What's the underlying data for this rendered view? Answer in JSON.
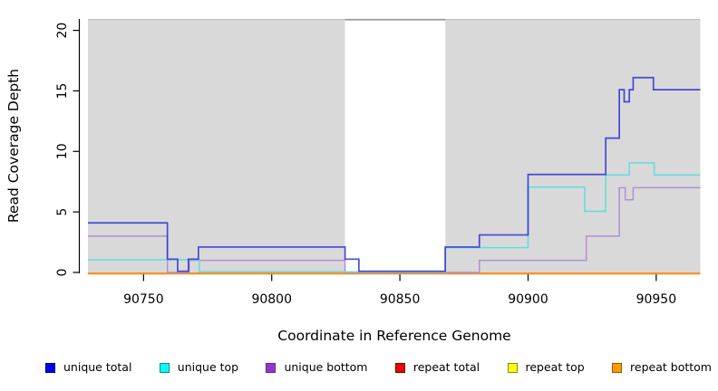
{
  "figure": {
    "x_axis": {
      "title": "Coordinate in Reference Genome",
      "ticks": [
        90750,
        90800,
        90850,
        90900,
        90950
      ],
      "range": [
        90728.3,
        90967.2
      ]
    },
    "y_axis": {
      "title": "Read Coverage Depth",
      "ticks": [
        0,
        5,
        10,
        15,
        20
      ],
      "range": [
        0,
        20.94
      ]
    }
  },
  "chart_data": {
    "type": "line",
    "subtype": "step-coverage",
    "title": "",
    "xlabel": "Coordinate in Reference Genome",
    "ylabel": "Read Coverage Depth",
    "xlim": [
      90728.3,
      90967.2
    ],
    "ylim": [
      0,
      20.94
    ],
    "grid": false,
    "legend_position": "bottom",
    "panel_background": "#d9d9d9",
    "no_data_band": {
      "x_start": 90828.6,
      "x_end": 90867.7,
      "fill": "#ffffff",
      "top_border": "#999999"
    },
    "series": [
      {
        "name": "repeat total",
        "color": "#e03030",
        "legend_fill": "#f00000",
        "legend_border": "#7d0000",
        "steps": [
          [
            90728.3,
            0
          ]
        ]
      },
      {
        "name": "repeat top",
        "color": "#ffe000",
        "legend_fill": "#ffff00",
        "legend_border": "#8b8b00",
        "steps": [
          [
            90728.3,
            0
          ]
        ]
      },
      {
        "name": "repeat bottom",
        "color": "#ff8c00",
        "legend_fill": "#ff9900",
        "legend_border": "#8b5a00",
        "steps": [
          [
            90728.3,
            0
          ]
        ]
      },
      {
        "name": "unique bottom",
        "color": "#b18fd9",
        "legend_fill": "#9933cc",
        "legend_border": "#5e2d91",
        "steps": [
          [
            90728.3,
            3
          ],
          [
            90759.3,
            0
          ],
          [
            90767.8,
            1
          ],
          [
            90828.6,
            0
          ],
          [
            90881,
            1
          ],
          [
            90922.7,
            3
          ],
          [
            90935.6,
            7
          ],
          [
            90937.9,
            6
          ],
          [
            90941,
            7
          ]
        ]
      },
      {
        "name": "unique top",
        "color": "#5edede",
        "legend_fill": "#00ffff",
        "legend_border": "#0f8b8b",
        "steps": [
          [
            90728.3,
            1
          ],
          [
            90771.8,
            0
          ],
          [
            90867.7,
            2
          ],
          [
            90900,
            7
          ],
          [
            90922.1,
            5
          ],
          [
            90930.3,
            8
          ],
          [
            90939.5,
            9
          ],
          [
            90949.2,
            8
          ]
        ]
      },
      {
        "name": "unique total",
        "color": "#2d2dd5",
        "legend_fill": "#0000f0",
        "legend_border": "#000080",
        "steps": [
          [
            90728.3,
            4
          ],
          [
            90759.3,
            1
          ],
          [
            90763.3,
            0
          ],
          [
            90767.5,
            1
          ],
          [
            90771.4,
            2
          ],
          [
            90828.6,
            1
          ],
          [
            90834,
            0
          ],
          [
            90867.7,
            2
          ],
          [
            90881,
            3
          ],
          [
            90900,
            8
          ],
          [
            90930.3,
            11
          ],
          [
            90935.6,
            15
          ],
          [
            90937.5,
            14
          ],
          [
            90939.5,
            15
          ],
          [
            90941,
            16
          ],
          [
            90948.9,
            15
          ]
        ]
      }
    ],
    "legend_order": [
      "unique total",
      "unique top",
      "unique bottom",
      "repeat total",
      "repeat top",
      "repeat bottom"
    ]
  }
}
